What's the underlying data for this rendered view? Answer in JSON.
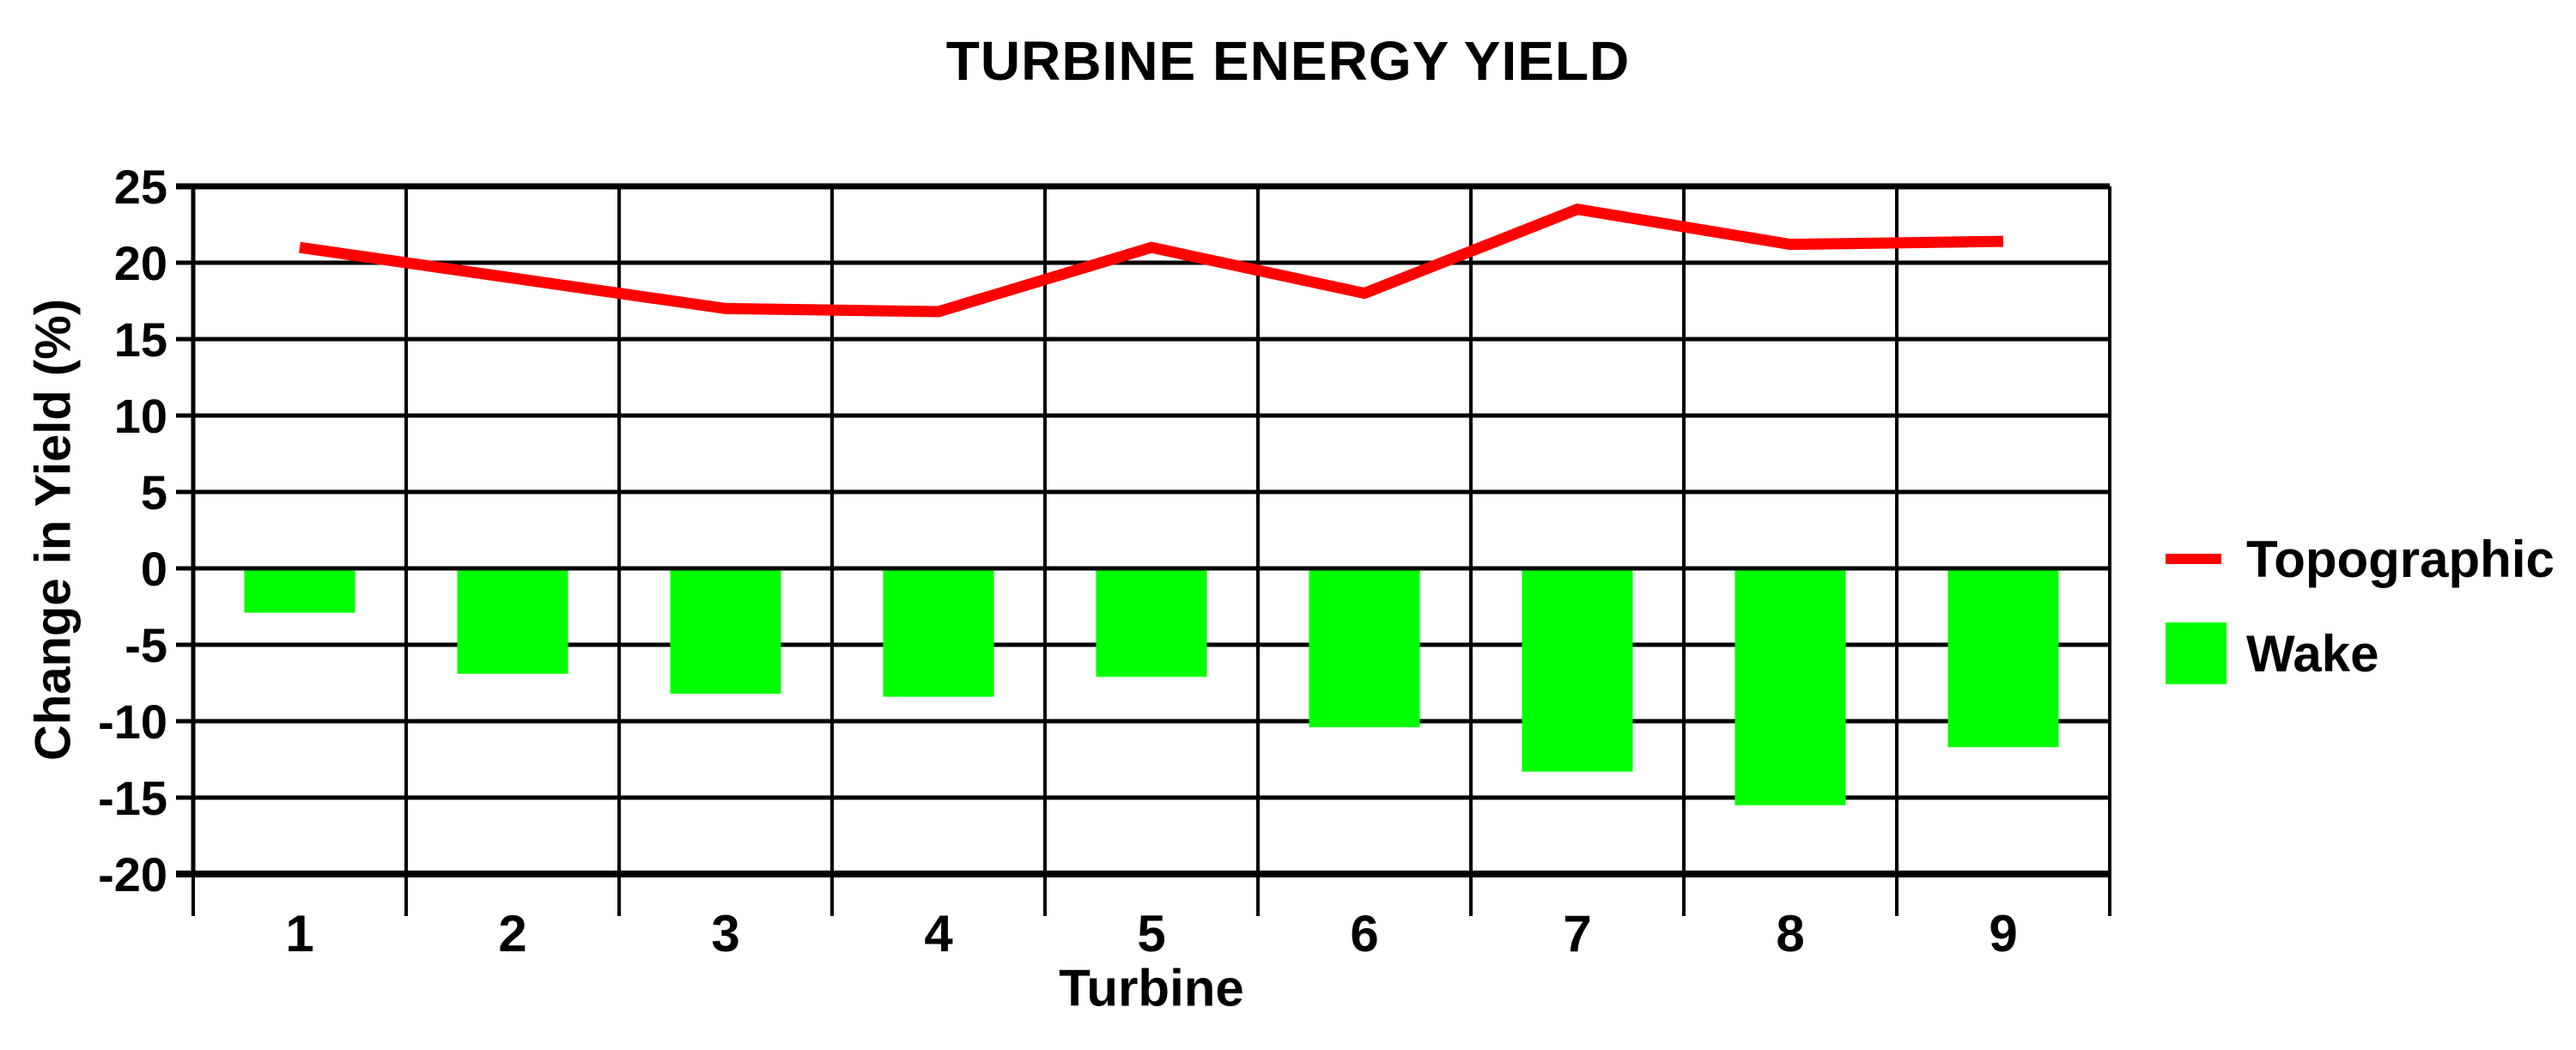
{
  "chart_data": {
    "type": "combo",
    "title": "TURBINE ENERGY YIELD",
    "xlabel": "Turbine",
    "ylabel": "Change in Yield (%)",
    "categories": [
      "1",
      "2",
      "3",
      "4",
      "5",
      "6",
      "7",
      "8",
      "9"
    ],
    "ylim": [
      -20,
      25
    ],
    "ytick_step": 5,
    "yticks": [
      25,
      20,
      15,
      10,
      5,
      0,
      -5,
      -10,
      -15,
      -20
    ],
    "grid": "both",
    "legend_position": "right",
    "series": [
      {
        "name": "Topographic",
        "type": "line",
        "color": "#ff0000",
        "values": [
          21,
          19,
          17,
          16.8,
          21,
          18,
          23.5,
          21.2,
          21.4
        ]
      },
      {
        "name": "Wake",
        "type": "bar",
        "color": "#00ff00",
        "values": [
          -2.9,
          -6.9,
          -8.2,
          -8.4,
          -7.1,
          -10.4,
          -13.3,
          -15.5,
          -11.7
        ]
      }
    ]
  },
  "colors": {
    "background": "#ffffff",
    "grid": "#000000",
    "text": "#000000"
  }
}
